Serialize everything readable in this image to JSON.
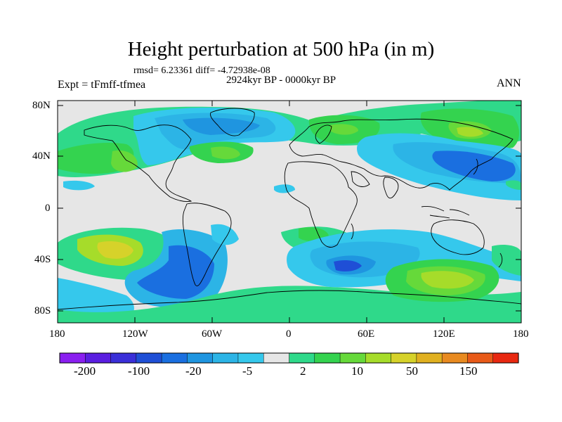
{
  "title": "Height perturbation at 500 hPa (in m)",
  "stats": "rmsd= 6.23361 diff= -4.72938e-08",
  "period": "2924kyr BP - 0000kyr BP",
  "experiment": "Expt = tFmff-tfmea",
  "season": "ANN",
  "lat_labels": [
    "80N",
    "40N",
    "0",
    "40S",
    "80S"
  ],
  "lon_labels": [
    "180",
    "120W",
    "60W",
    "0",
    "60E",
    "120E",
    "180"
  ],
  "colorbar": {
    "labels": [
      "-200",
      "-100",
      "-20",
      "-5",
      "2",
      "10",
      "50",
      "150"
    ],
    "colors": [
      "#8a1ff0",
      "#5a1ee0",
      "#3a2fd8",
      "#1f4fd6",
      "#1a6fe0",
      "#1f95e0",
      "#2cb4e6",
      "#35c8ec",
      "#e6e6e6",
      "#2fd98a",
      "#34d34f",
      "#66d93a",
      "#a6dc2a",
      "#d6d22a",
      "#e0b020",
      "#e88a20",
      "#e85a18",
      "#e82810"
    ]
  },
  "colors": {
    "land_outline": "#000000",
    "background": "#e6e6e6"
  }
}
